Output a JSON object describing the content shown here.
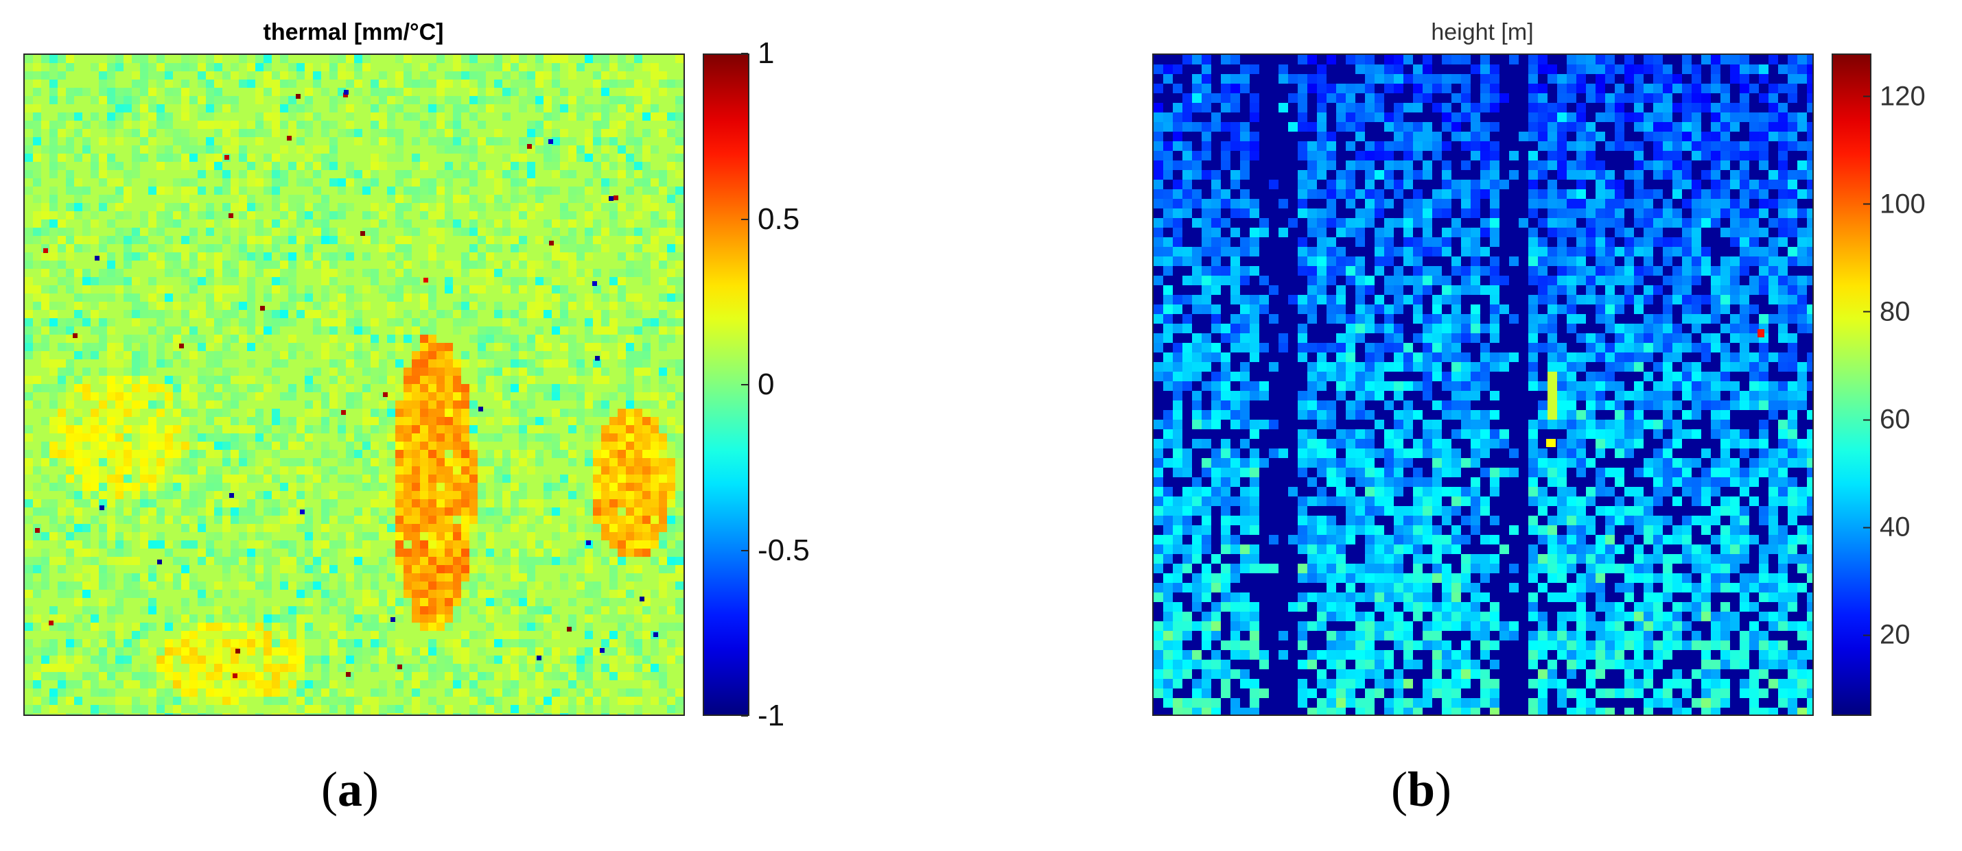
{
  "chart_data": [
    {
      "type": "heatmap",
      "title": "thermal [mm/°C]",
      "panel_label": "a",
      "colormap": "jet",
      "clim": [
        -1,
        1
      ],
      "colorbar_ticks": [
        {
          "value": 1,
          "label": "1"
        },
        {
          "value": 0.5,
          "label": "0.5"
        },
        {
          "value": 0,
          "label": "0"
        },
        {
          "value": -0.5,
          "label": "-0.5"
        },
        {
          "value": -1,
          "label": "-1"
        }
      ],
      "background_value": 0.1,
      "grid": false
    },
    {
      "type": "heatmap",
      "title": "height [m]",
      "panel_label": "b",
      "colormap": "jet",
      "clim": [
        5,
        128
      ],
      "colorbar_ticks": [
        {
          "value": 120,
          "label": "120"
        },
        {
          "value": 100,
          "label": "100"
        },
        {
          "value": 80,
          "label": "80"
        },
        {
          "value": 60,
          "label": "60"
        },
        {
          "value": 40,
          "label": "40"
        },
        {
          "value": 20,
          "label": "20"
        }
      ],
      "background_value": 8,
      "grid": false
    }
  ],
  "colors": {
    "frame": "#262626",
    "background": "#ffffff"
  }
}
